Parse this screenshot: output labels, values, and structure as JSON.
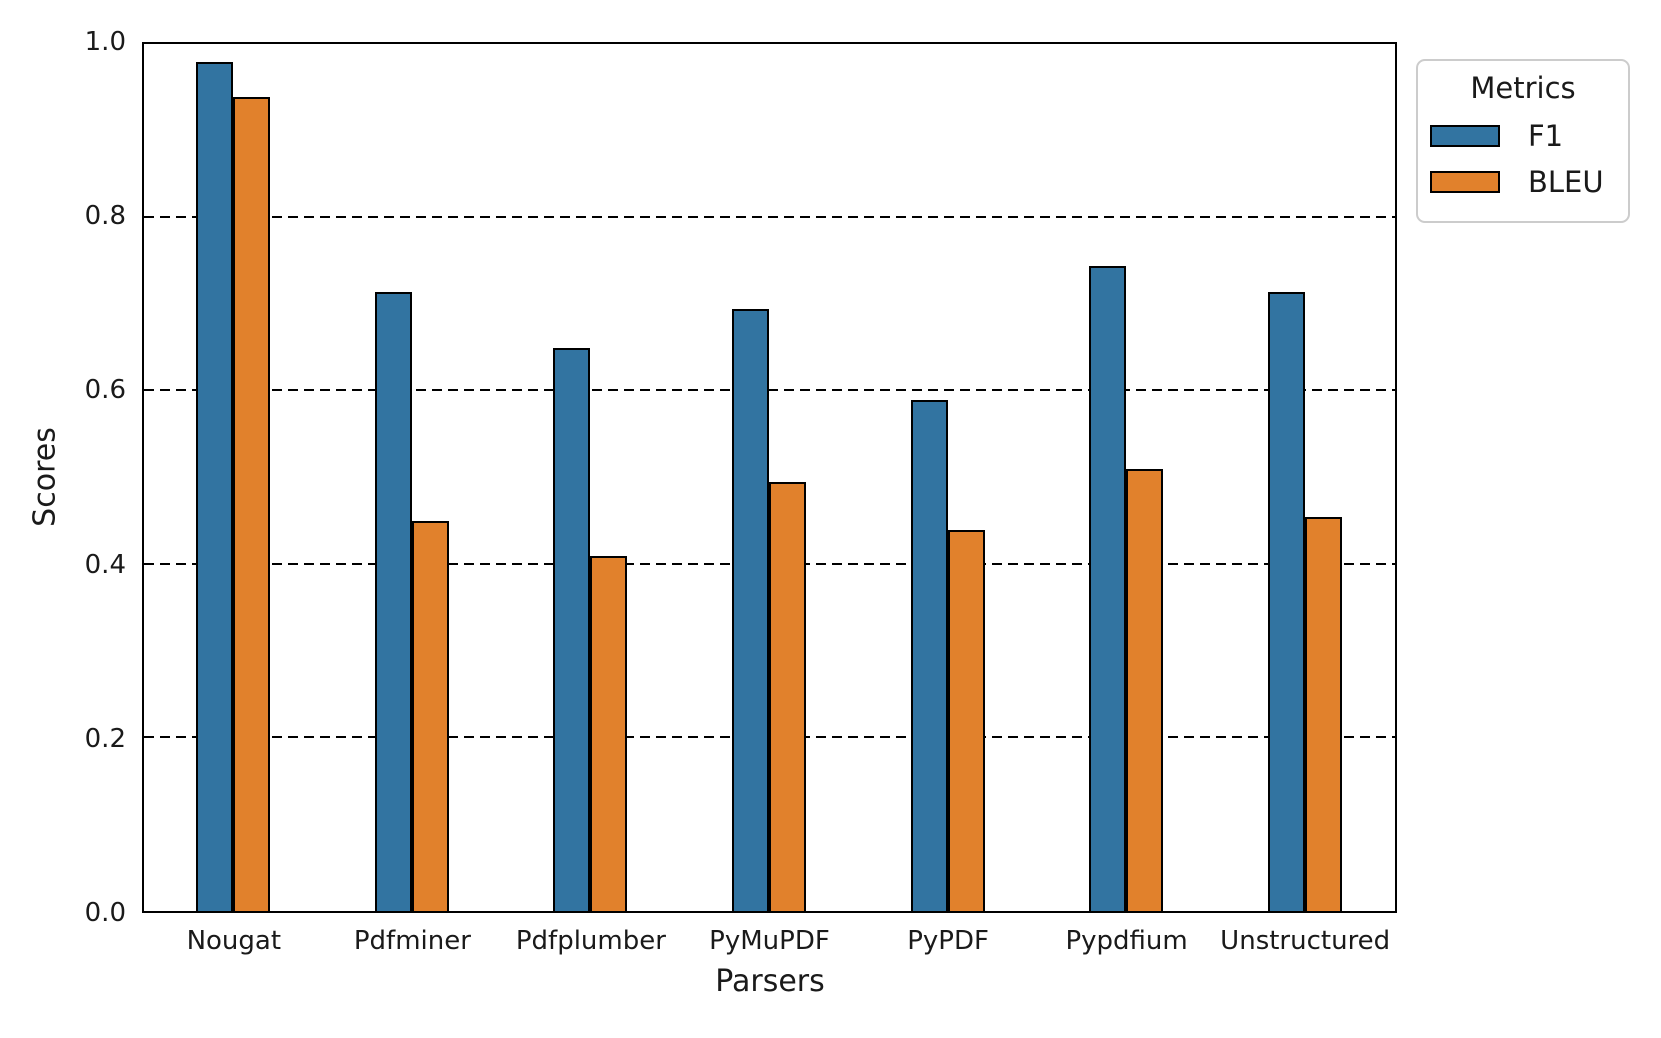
{
  "figure": {
    "background_color": "#ffffff",
    "text_color": "#1a1a1a",
    "axis_line_color": "#000000",
    "legend_border_color": "#cccccc"
  },
  "chart_data": {
    "type": "bar",
    "title": "",
    "xlabel": "Parsers",
    "ylabel": "Scores",
    "categories": [
      "Nougat",
      "Pdfminer",
      "Pdfplumber",
      "PyMuPDF",
      "PyPDF",
      "Pypdfium",
      "Unstructured"
    ],
    "series": [
      {
        "name": "F1",
        "color": "#3274a1",
        "values": [
          0.98,
          0.715,
          0.65,
          0.695,
          0.59,
          0.745,
          0.715
        ]
      },
      {
        "name": "BLEU",
        "color": "#e1812c",
        "values": [
          0.94,
          0.45,
          0.41,
          0.495,
          0.44,
          0.51,
          0.455
        ]
      }
    ],
    "ylim": [
      0.0,
      1.0
    ],
    "yticks": [
      {
        "label": "0.0",
        "value": 0.0
      },
      {
        "label": "0.2",
        "value": 0.2
      },
      {
        "label": "0.4",
        "value": 0.4
      },
      {
        "label": "0.6",
        "value": 0.6
      },
      {
        "label": "0.8",
        "value": 0.8
      },
      {
        "label": "1.0",
        "value": 1.0
      }
    ],
    "gridlines": [
      0.2,
      0.4,
      0.6,
      0.8
    ],
    "grid_style": "horizontal dashed black",
    "legend": {
      "title": "Metrics",
      "position": "outside upper right",
      "entries": [
        "F1",
        "BLEU"
      ]
    }
  }
}
